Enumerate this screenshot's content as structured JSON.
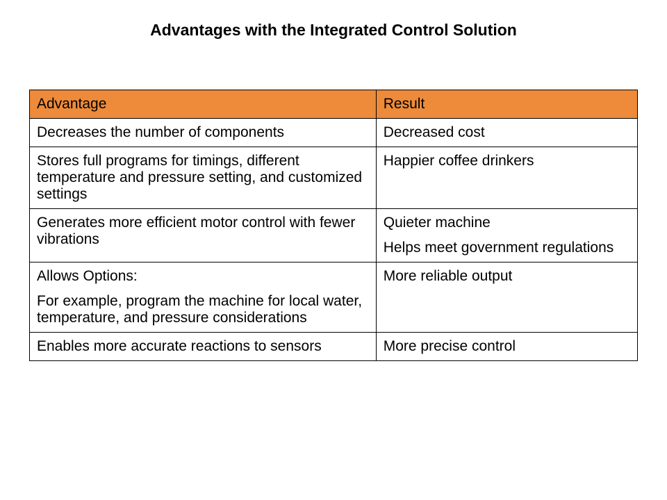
{
  "page": {
    "title": "Advantages with the Integrated Control Solution"
  },
  "table": {
    "header_bg": "#ed8b3b",
    "border_color": "#000000",
    "text_color": "#000000",
    "font_size_pt": 16,
    "columns": [
      {
        "label": "Advantage",
        "width_pct": 57
      },
      {
        "label": "Result",
        "width_pct": 43
      }
    ],
    "rows": [
      {
        "advantage": [
          "Decreases the number of components"
        ],
        "result": [
          "Decreased cost"
        ]
      },
      {
        "advantage": [
          "Stores full programs for timings, different temperature and pressure setting, and customized settings"
        ],
        "result": [
          "Happier coffee drinkers"
        ]
      },
      {
        "advantage": [
          "Generates more efficient motor control with fewer vibrations"
        ],
        "result": [
          "Quieter machine",
          "Helps meet government regulations"
        ]
      },
      {
        "advantage": [
          "Allows Options:",
          "For example, program the machine for local water, temperature, and pressure considerations"
        ],
        "result": [
          "More reliable output"
        ]
      },
      {
        "advantage": [
          "Enables more accurate reactions to sensors"
        ],
        "result": [
          "More precise control"
        ]
      }
    ]
  }
}
